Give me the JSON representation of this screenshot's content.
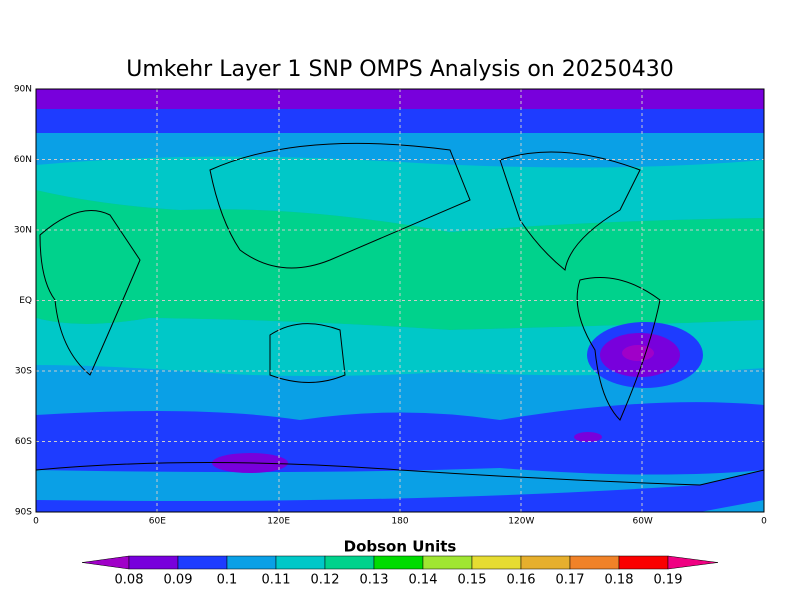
{
  "title": "Umkehr Layer 1 SNP OMPS Analysis on 20250430",
  "map": {
    "lat_ticks": [
      "90N",
      "60N",
      "30N",
      "EQ",
      "30S",
      "60S",
      "90S"
    ],
    "lon_ticks": [
      "0",
      "60E",
      "120E",
      "180",
      "120W",
      "60W",
      "0"
    ]
  },
  "colorbar": {
    "title": "Dobson Units",
    "levels": [
      0.08,
      0.09,
      0.1,
      0.11,
      0.12,
      0.13,
      0.14,
      0.15,
      0.16,
      0.17,
      0.18,
      0.19
    ],
    "colors": [
      "#a000c8",
      "#7800dc",
      "#1e3cff",
      "#0aa0e6",
      "#00c8c8",
      "#00d28c",
      "#00dc00",
      "#a0e632",
      "#e6dc32",
      "#e6af2d",
      "#f08228",
      "#fa0000",
      "#f00082"
    ]
  }
}
